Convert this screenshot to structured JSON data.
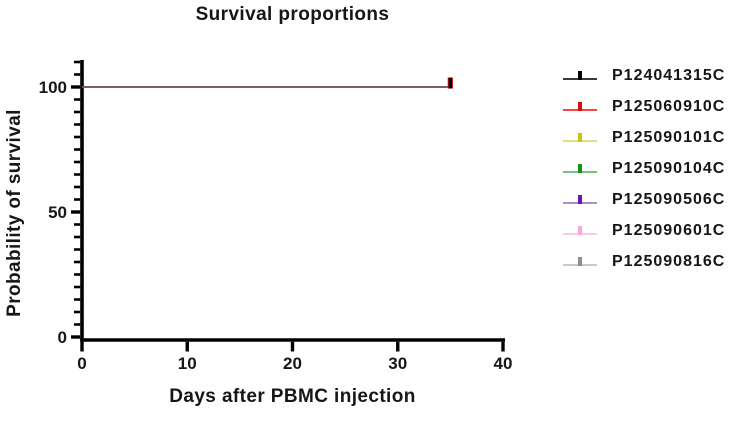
{
  "chart_data": {
    "type": "line",
    "subtype": "kaplan-meier-survival",
    "title": "Survival proportions",
    "xlabel": "Days after PBMC injection",
    "ylabel": "Probability of survival",
    "xlim": [
      0,
      40
    ],
    "ylim": [
      0,
      110
    ],
    "x_ticks": [
      0,
      10,
      20,
      30,
      40
    ],
    "y_ticks": [
      0,
      50,
      100
    ],
    "y_minor_tick_step": 5,
    "x_minor_ticks": false,
    "grid": false,
    "legend_position": "right",
    "axis_color": "#000000",
    "curve_color_on_plot": "#1c1c1c",
    "series": [
      {
        "name": "P124041315C",
        "line_color": "#3a3a3a",
        "censor_color": "#000000",
        "points": [
          [
            0,
            100
          ],
          [
            35,
            100
          ]
        ],
        "censored_days": [
          35
        ]
      },
      {
        "name": "P125060910C",
        "line_color": "#f54545",
        "censor_color": "#e10b0b",
        "points": [
          [
            0,
            100
          ],
          [
            35,
            100
          ]
        ],
        "censored_days": [
          35
        ]
      },
      {
        "name": "P125090101C",
        "line_color": "#e4df7c",
        "censor_color": "#cec308",
        "points": [
          [
            0,
            100
          ],
          [
            35,
            100
          ]
        ],
        "censored_days": [
          35
        ]
      },
      {
        "name": "P125090104C",
        "line_color": "#7dbf7d",
        "censor_color": "#149414",
        "points": [
          [
            0,
            100
          ],
          [
            35,
            100
          ]
        ],
        "censored_days": [
          35
        ]
      },
      {
        "name": "P125090506C",
        "line_color": "#b18bc9",
        "censor_color": "#7410b0",
        "points": [
          [
            0,
            100
          ],
          [
            35,
            100
          ]
        ],
        "censored_days": [
          35
        ]
      },
      {
        "name": "P125090601C",
        "line_color": "#fcc8e9",
        "censor_color": "#f9a6d9",
        "points": [
          [
            0,
            100
          ],
          [
            35,
            100
          ]
        ],
        "censored_days": [
          35
        ]
      },
      {
        "name": "P125090816C",
        "line_color": "#c8c8c8",
        "censor_color": "#8e8e8e",
        "points": [
          [
            0,
            100
          ],
          [
            35,
            100
          ]
        ],
        "censored_days": [
          35
        ]
      }
    ]
  }
}
